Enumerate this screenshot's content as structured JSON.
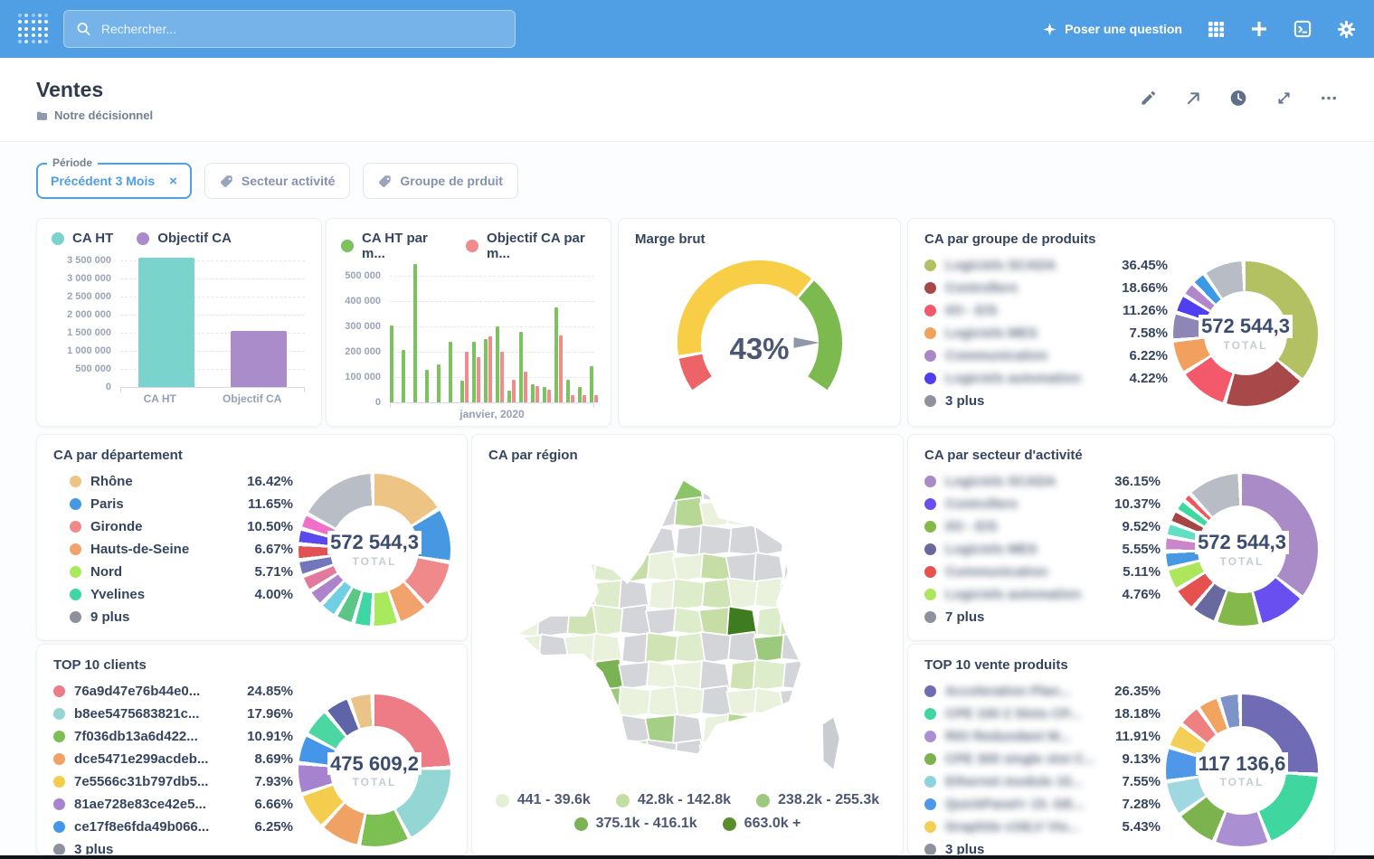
{
  "header": {
    "search_placeholder": "Rechercher...",
    "ask_label": "Poser une question"
  },
  "titlebar": {
    "title": "Ventes",
    "collection": "Notre décisionnel"
  },
  "filters": {
    "periode_label": "Période",
    "periode_value": "Précédent 3 Mois",
    "clear_symbol": "×",
    "chips": [
      "Secteur activité",
      "Groupe de prduit"
    ]
  },
  "cards": {
    "caht": {
      "type": "bar",
      "legend": [
        {
          "label": "CA HT",
          "color": "#7bd3cd"
        },
        {
          "label": "Objectif CA",
          "color": "#a98cc9"
        }
      ],
      "y_ticks": [
        "3 500 000",
        "3 000 000",
        "2 500 000",
        "2 000 000",
        "1 500 000",
        "1 000 000",
        "500 000",
        "0"
      ],
      "ymax": 3500000,
      "bars": [
        {
          "label": "CA HT",
          "value": 3570000,
          "color": "#7bd3cd"
        },
        {
          "label": "Objectif CA",
          "value": 1540000,
          "color": "#a98cc9"
        }
      ]
    },
    "mois": {
      "type": "grouped-bar",
      "legend": [
        {
          "label": "CA HT par m...",
          "color": "#7cc35f"
        },
        {
          "label": "Objectif CA par m...",
          "color": "#f08c8c"
        }
      ],
      "y_ticks": [
        "500 000",
        "400 000",
        "300 000",
        "200 000",
        "100 000",
        "0"
      ],
      "ymax_k": 500,
      "x_label": "janvier, 2020",
      "colors": [
        "#7cc35f",
        "#f08c8c"
      ],
      "groups_k": [
        [
          305,
          null
        ],
        [
          207,
          null
        ],
        [
          545,
          null
        ],
        [
          130,
          null
        ],
        [
          150,
          null
        ],
        [
          240,
          null
        ],
        [
          85,
          200
        ],
        [
          240,
          180
        ],
        [
          250,
          260
        ],
        [
          300,
          200
        ],
        [
          45,
          88
        ],
        [
          280,
          120
        ],
        [
          72,
          65
        ],
        [
          60,
          50
        ],
        [
          375,
          265
        ],
        [
          90,
          30
        ],
        [
          60,
          27
        ],
        [
          143,
          30
        ]
      ]
    },
    "marge": {
      "type": "gauge",
      "title": "Marge brut",
      "value": 43,
      "value_display": "43%",
      "min": 0,
      "max": 50,
      "segments": [
        {
          "from": 0,
          "to": 5,
          "color": "#ec6368"
        },
        {
          "from": 5,
          "to": 33,
          "color": "#f7ce45"
        },
        {
          "from": 33,
          "to": 50,
          "color": "#7cba50"
        }
      ]
    },
    "groupe": {
      "type": "donut",
      "title": "CA par groupe de produits",
      "total": "572 544,3",
      "total_label": "TOTAL",
      "legend": [
        {
          "label": "Logiciels SCADA",
          "pct": "36.45%",
          "color": "#b3c162",
          "blur": true
        },
        {
          "label": "Controllers",
          "pct": "18.66%",
          "color": "#a94848",
          "blur": true
        },
        {
          "label": "I/O - E/S",
          "pct": "11.26%",
          "color": "#f3596a",
          "blur": true
        },
        {
          "label": "Logiciels MES",
          "pct": "7.58%",
          "color": "#f2a05e",
          "blur": true
        },
        {
          "label": "Communication",
          "pct": "6.22%",
          "color": "#a989c5",
          "blur": true
        },
        {
          "label": "Logiciels automation",
          "pct": "4.22%",
          "color": "#4f3ff0",
          "blur": true
        },
        {
          "label": "3 plus",
          "color": "#8d929c"
        }
      ],
      "slices": [
        {
          "pct": 36.45,
          "color": "#b3c162"
        },
        {
          "pct": 18.66,
          "color": "#a94848"
        },
        {
          "pct": 11.26,
          "color": "#f3596a"
        },
        {
          "pct": 7.58,
          "color": "#f2a05e"
        },
        {
          "pct": 6.22,
          "color": "#8f86b8"
        },
        {
          "pct": 4.22,
          "color": "#4f3ff0"
        },
        {
          "pct": 3.2,
          "color": "#b287c9"
        },
        {
          "pct": 3.3,
          "color": "#3c99e8"
        },
        {
          "pct": 9.11,
          "color": "#b8bcc4"
        }
      ]
    },
    "departement": {
      "type": "donut",
      "title": "CA par département",
      "total": "572 544,3",
      "total_label": "TOTAL",
      "legend": [
        {
          "label": "Rhône",
          "pct": "16.42%",
          "color": "#eec484"
        },
        {
          "label": "Paris",
          "pct": "11.65%",
          "color": "#4798e3"
        },
        {
          "label": "Gironde",
          "pct": "10.50%",
          "color": "#f08a8a"
        },
        {
          "label": "Hauts-de-Seine",
          "pct": "6.67%",
          "color": "#f2a36b"
        },
        {
          "label": "Nord",
          "pct": "5.71%",
          "color": "#a9e95d"
        },
        {
          "label": "Yvelines",
          "pct": "4.00%",
          "color": "#3ed6a3"
        },
        {
          "label": "9 plus",
          "color": "#8d929c"
        }
      ],
      "slices": [
        {
          "pct": 16.42,
          "color": "#eec484"
        },
        {
          "pct": 11.65,
          "color": "#4798e3"
        },
        {
          "pct": 10.5,
          "color": "#f08a8a"
        },
        {
          "pct": 6.67,
          "color": "#f2a36b"
        },
        {
          "pct": 5.71,
          "color": "#a9e95d"
        },
        {
          "pct": 4.0,
          "color": "#3ed6a3"
        },
        {
          "pct": 4.0,
          "color": "#5ac687"
        },
        {
          "pct": 3.8,
          "color": "#6ed0e0"
        },
        {
          "pct": 3.6,
          "color": "#ad84cb"
        },
        {
          "pct": 3.5,
          "color": "#e4799f"
        },
        {
          "pct": 3.4,
          "color": "#7277bd"
        },
        {
          "pct": 3.4,
          "color": "#e25255"
        },
        {
          "pct": 3.3,
          "color": "#5b49ee"
        },
        {
          "pct": 3.3,
          "color": "#ef6fc9"
        },
        {
          "pct": 16.75,
          "color": "#b9bdc6"
        }
      ]
    },
    "region": {
      "type": "map",
      "title": "CA par région",
      "legend": [
        {
          "label": "441 - 39.6k",
          "color": "#e4efd5"
        },
        {
          "label": "42.8k - 142.8k",
          "color": "#c2dfa3"
        },
        {
          "label": "238.2k - 255.3k",
          "color": "#9cc97e"
        },
        {
          "label": "375.1k - 416.1k",
          "color": "#7bb254"
        },
        {
          "label": "663.0k +",
          "color": "#5a8e2a"
        }
      ]
    },
    "secteur": {
      "type": "donut",
      "title": "CA par secteur d'activité",
      "total": "572 544,3",
      "total_label": "TOTAL",
      "legend": [
        {
          "label": "Logiciels SCADA",
          "pct": "36.15%",
          "color": "#a98bc8",
          "blur": true
        },
        {
          "label": "Controllers",
          "pct": "10.37%",
          "color": "#6a4ff0",
          "blur": true
        },
        {
          "label": "I/O - E/S",
          "pct": "9.52%",
          "color": "#85b84b",
          "blur": true
        },
        {
          "label": "Logiciels MES",
          "pct": "5.55%",
          "color": "#68699e",
          "blur": true
        },
        {
          "label": "Communication",
          "pct": "5.11%",
          "color": "#e6504f",
          "blur": true
        },
        {
          "label": "Logiciels automation",
          "pct": "4.76%",
          "color": "#aee65b",
          "blur": true
        },
        {
          "label": "7 plus",
          "color": "#8d929c"
        }
      ],
      "slices": [
        {
          "pct": 36.15,
          "color": "#a98bc8"
        },
        {
          "pct": 10.37,
          "color": "#6a4ff0"
        },
        {
          "pct": 9.52,
          "color": "#85b84b"
        },
        {
          "pct": 5.55,
          "color": "#68699e"
        },
        {
          "pct": 5.11,
          "color": "#e6504f"
        },
        {
          "pct": 4.76,
          "color": "#aee65b"
        },
        {
          "pct": 3.6,
          "color": "#4798e3"
        },
        {
          "pct": 3.2,
          "color": "#ca86c8"
        },
        {
          "pct": 3.0,
          "color": "#5fe0c0"
        },
        {
          "pct": 2.8,
          "color": "#a84444"
        },
        {
          "pct": 2.6,
          "color": "#3fd9a0"
        },
        {
          "pct": 1.9,
          "color": "#f0565a"
        },
        {
          "pct": 11.44,
          "color": "#b8bcc4"
        }
      ]
    },
    "clients": {
      "type": "donut",
      "title": "TOP 10 clients",
      "total": "475 609,2",
      "total_label": "TOTAL",
      "legend": [
        {
          "label": "76a9d47e76b44e0...",
          "pct": "24.85%",
          "color": "#ed7c87"
        },
        {
          "label": "b8ee5475683821c...",
          "pct": "17.96%",
          "color": "#93d6d3"
        },
        {
          "label": "7f036db13a6d422...",
          "pct": "10.91%",
          "color": "#7cbf52"
        },
        {
          "label": "dce5471e299acdeb...",
          "pct": "8.69%",
          "color": "#f0a264"
        },
        {
          "label": "7e5566c31b797db5...",
          "pct": "7.93%",
          "color": "#f5cd4e"
        },
        {
          "label": "81ae728e83ce42e5...",
          "pct": "6.66%",
          "color": "#a783cf"
        },
        {
          "label": "ce17f8e6fda49b066...",
          "pct": "6.25%",
          "color": "#4596e8"
        },
        {
          "label": "3 plus",
          "color": "#8d929c"
        }
      ],
      "slices": [
        {
          "pct": 24.85,
          "color": "#ed7c87"
        },
        {
          "pct": 17.96,
          "color": "#93d6d3"
        },
        {
          "pct": 10.91,
          "color": "#7cbf52"
        },
        {
          "pct": 8.69,
          "color": "#f0a264"
        },
        {
          "pct": 7.93,
          "color": "#f5cd4e"
        },
        {
          "pct": 6.66,
          "color": "#a783cf"
        },
        {
          "pct": 6.25,
          "color": "#4596e8"
        },
        {
          "pct": 6.2,
          "color": "#4cd6a1"
        },
        {
          "pct": 5.5,
          "color": "#5f63a8"
        },
        {
          "pct": 5.05,
          "color": "#e9c388"
        }
      ]
    },
    "produits": {
      "type": "donut",
      "title": "TOP 10 vente produits",
      "total": "117 136,6",
      "total_label": "TOTAL",
      "legend": [
        {
          "label": "Acceleration Plan...",
          "pct": "26.35%",
          "color": "#6f6bb4",
          "blur": true
        },
        {
          "label": "CPE 100 2 Slots CP...",
          "pct": "18.18%",
          "color": "#3fd6a0",
          "blur": true
        },
        {
          "label": "RIO Redundant M...",
          "pct": "11.91%",
          "color": "#ab8fd3",
          "blur": true
        },
        {
          "label": "CPE 305 single slot C...",
          "pct": "9.13%",
          "color": "#7cb34e",
          "blur": true
        },
        {
          "label": "Ethernet module 10...",
          "pct": "7.55%",
          "color": "#8ed3dd",
          "blur": true
        },
        {
          "label": "QuickPanel+ 15. GE...",
          "pct": "7.28%",
          "color": "#4f97e8",
          "blur": true
        },
        {
          "label": "Graphite v16LV Vis...",
          "pct": "5.43%",
          "color": "#f4cf57",
          "blur": true
        },
        {
          "label": "3 plus",
          "color": "#8d929c"
        }
      ],
      "slices": [
        {
          "pct": 26.35,
          "color": "#6f6bb4"
        },
        {
          "pct": 18.18,
          "color": "#3fd6a0"
        },
        {
          "pct": 11.91,
          "color": "#ab8fd3"
        },
        {
          "pct": 9.13,
          "color": "#7cb34e"
        },
        {
          "pct": 7.55,
          "color": "#9fd8e0"
        },
        {
          "pct": 7.28,
          "color": "#4f97e8"
        },
        {
          "pct": 5.43,
          "color": "#f4cf57"
        },
        {
          "pct": 4.9,
          "color": "#ee8080"
        },
        {
          "pct": 4.7,
          "color": "#f1a35f"
        },
        {
          "pct": 4.57,
          "color": "#7e93c9"
        }
      ]
    }
  }
}
